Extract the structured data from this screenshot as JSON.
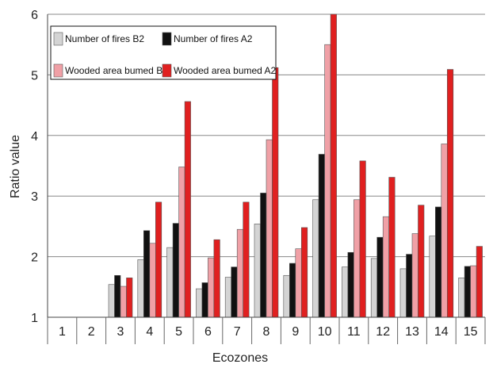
{
  "chart_data": {
    "type": "bar",
    "xlabel": "Ecozones",
    "ylabel": "Ratio value",
    "ylim": [
      1,
      6
    ],
    "yticks": [
      "1",
      "2",
      "3",
      "4",
      "5",
      "6"
    ],
    "grid": "horizontal",
    "legend_position": "top-left",
    "categories": [
      "1",
      "2",
      "3",
      "4",
      "5",
      "6",
      "7",
      "8",
      "9",
      "10",
      "11",
      "12",
      "13",
      "14",
      "15"
    ],
    "series": [
      {
        "name": "Number of fires B2",
        "color": "#d4d4d4",
        "values": [
          null,
          null,
          1.54,
          1.95,
          2.15,
          1.47,
          1.66,
          2.54,
          1.69,
          2.94,
          1.83,
          1.97,
          1.8,
          2.34,
          1.65
        ]
      },
      {
        "name": "Number of fires A2",
        "color": "#111111",
        "values": [
          null,
          null,
          1.69,
          2.43,
          2.55,
          1.57,
          1.83,
          3.05,
          1.89,
          3.69,
          2.07,
          2.32,
          2.04,
          2.82,
          1.84
        ]
      },
      {
        "name": "Wooded area bumed B2",
        "color": "#f0a0a6",
        "values": [
          null,
          null,
          1.51,
          2.22,
          3.48,
          1.98,
          2.45,
          3.93,
          2.13,
          5.5,
          2.94,
          2.66,
          2.38,
          3.86,
          1.85
        ]
      },
      {
        "name": "Wooded area bumed A2",
        "color": "#e02020",
        "values": [
          null,
          null,
          1.65,
          2.9,
          4.56,
          2.28,
          2.9,
          5.12,
          2.48,
          6.02,
          3.58,
          3.31,
          2.85,
          5.09,
          2.17
        ]
      }
    ]
  }
}
